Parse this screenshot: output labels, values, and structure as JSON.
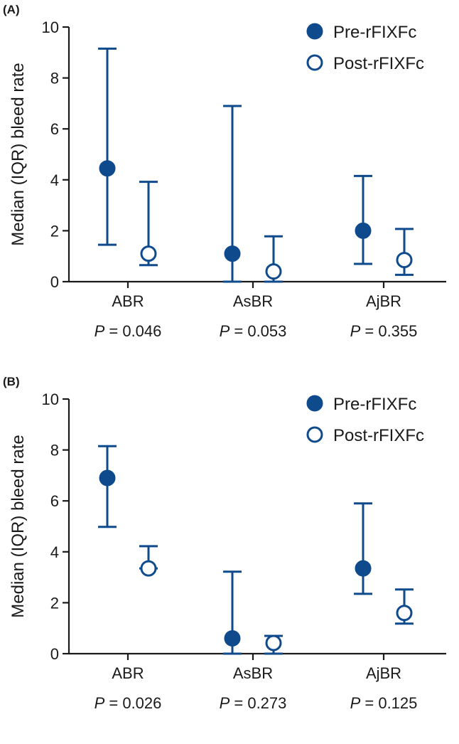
{
  "chart_data": [
    {
      "type": "scatter",
      "panel_label": "(A)",
      "ylabel": "Median (IQR) bleed rate",
      "ylim": [
        0,
        10
      ],
      "yticks": [
        "0",
        "2",
        "4",
        "6",
        "8",
        "10"
      ],
      "categories": [
        "ABR",
        "AsBR",
        "AjBR"
      ],
      "p_prefix": "P",
      "p_values": [
        "= 0.046",
        "= 0.053",
        "= 0.355"
      ],
      "legend_position": "top-right",
      "series": [
        {
          "name": "Pre-rFIXFc",
          "marker": "filled-circle",
          "median": [
            4.45,
            1.1,
            2.0
          ],
          "q1": [
            1.45,
            0.0,
            0.7
          ],
          "q3": [
            9.15,
            6.9,
            4.15
          ]
        },
        {
          "name": "Post-rFIXFc",
          "marker": "open-circle",
          "median": [
            1.1,
            0.4,
            0.85
          ],
          "q1": [
            0.65,
            0.0,
            0.27
          ],
          "q3": [
            3.92,
            1.78,
            2.07
          ]
        }
      ]
    },
    {
      "type": "scatter",
      "panel_label": "(B)",
      "ylabel": "Median (IQR) bleed rate",
      "ylim": [
        0,
        10
      ],
      "yticks": [
        "0",
        "2",
        "4",
        "6",
        "8",
        "10"
      ],
      "categories": [
        "ABR",
        "AsBR",
        "AjBR"
      ],
      "p_prefix": "P",
      "p_values": [
        "= 0.026",
        "= 0.273",
        "= 0.125"
      ],
      "legend_position": "top-right",
      "series": [
        {
          "name": "Pre-rFIXFc",
          "marker": "filled-circle",
          "median": [
            6.9,
            0.6,
            3.35
          ],
          "q1": [
            4.98,
            0.0,
            2.35
          ],
          "q3": [
            8.15,
            3.22,
            5.9
          ]
        },
        {
          "name": "Post-rFIXFc",
          "marker": "open-circle",
          "median": [
            3.35,
            0.42,
            1.6
          ],
          "q1": [
            3.35,
            0.0,
            1.18
          ],
          "q3": [
            4.22,
            0.7,
            2.52
          ]
        }
      ]
    }
  ],
  "colors": {
    "series": "#0e4a8c",
    "axis": "#1a1a1a"
  }
}
